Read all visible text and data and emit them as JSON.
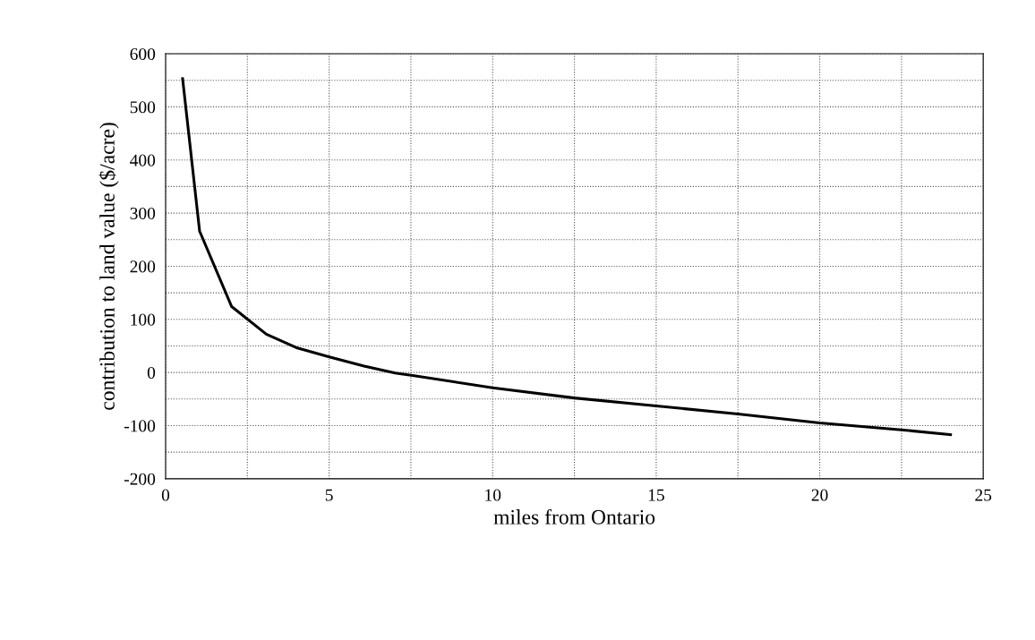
{
  "chart_data": {
    "type": "line",
    "xlabel": "miles from Ontario",
    "ylabel": "contribution to land value ($/acre)",
    "x": [
      0.52,
      1.04,
      2.02,
      3.08,
      4.03,
      5.03,
      6.07,
      7.02,
      7.6,
      10.0,
      12.5,
      15.0,
      17.5,
      20.0,
      22.5,
      24.0
    ],
    "series": [
      {
        "color": "#000000",
        "values": [
          553,
          266,
          124,
          72,
          46,
          29,
          12,
          -1,
          -6,
          -29,
          -48,
          -63,
          -78,
          -95,
          -108,
          -117
        ]
      }
    ],
    "xlim": [
      0,
      25
    ],
    "xticks": [
      0,
      {
        "value": 2.5,
        "label": null
      },
      5,
      {
        "value": 7.5,
        "label": null
      },
      10,
      {
        "value": 12.5,
        "label": null
      },
      15,
      {
        "value": 17.5,
        "label": null
      },
      20,
      {
        "value": 22.5,
        "label": null
      },
      25
    ],
    "ylim": [
      -200,
      600
    ],
    "yticks": [
      -200,
      {
        "value": -150,
        "label": null
      },
      -100,
      {
        "value": -50,
        "label": null
      },
      0,
      {
        "value": 50,
        "label": null
      },
      100,
      {
        "value": 150,
        "label": null
      },
      200,
      {
        "value": 250,
        "label": null
      },
      300,
      {
        "value": 350,
        "label": null
      },
      400,
      {
        "value": 450,
        "label": null
      },
      500,
      {
        "value": 550,
        "label": null
      },
      600
    ],
    "grid": true,
    "marker": "none",
    "line_style": "solid"
  }
}
